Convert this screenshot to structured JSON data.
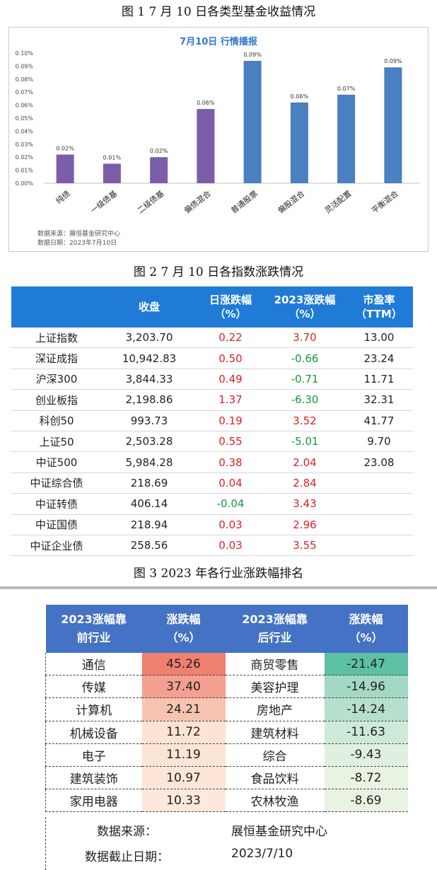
{
  "figure1": {
    "caption": "图 1   7 月 10 日各类型基金收益情况",
    "source_line": "数据来源：展恒基金研究中心",
    "date_line": "数据日期：2023年7月10日"
  },
  "chart_data": {
    "type": "bar",
    "title": "7月10日  行情播报",
    "categories": [
      "纯债",
      "一级债基",
      "二级债基",
      "偏债混合",
      "普通股票",
      "偏股混合",
      "灵活配置",
      "平衡混合"
    ],
    "values": [
      0.022,
      0.015,
      0.02,
      0.057,
      0.094,
      0.062,
      0.068,
      0.089
    ],
    "data_labels": [
      "0.02%",
      "0.01%",
      "0.02%",
      "0.06%",
      "0.09%",
      "0.06%",
      "0.07%",
      "0.09%"
    ],
    "bar_colors": [
      "#7b5ea7",
      "#7b5ea7",
      "#7b5ea7",
      "#7b5ea7",
      "#4a7fc0",
      "#4a7fc0",
      "#4a7fc0",
      "#4a7fc0"
    ],
    "yticks": [
      "0.00%",
      "0.01%",
      "0.02%",
      "0.03%",
      "0.04%",
      "0.05%",
      "0.06%",
      "0.07%",
      "0.08%",
      "0.09%",
      "0.10%"
    ],
    "ylim": [
      0,
      0.1
    ],
    "xlabel": "",
    "ylabel": "",
    "grid": false,
    "title_color": "#2e75d0"
  },
  "figure2": {
    "caption": "图 2   7 月 10 日各指数涨跌情况",
    "headers": [
      {
        "l1": "",
        "l2": ""
      },
      {
        "l1": "收盘",
        "l2": ""
      },
      {
        "l1": "日涨跌幅",
        "l2": "（%）"
      },
      {
        "l1": "2023涨跌幅",
        "l2": "（%）"
      },
      {
        "l1": "市盈率",
        "l2": "（TTM）"
      }
    ],
    "rows": [
      {
        "name": "上证指数",
        "close": "3,203.70",
        "day": "0.22",
        "year": "3.70",
        "pe": "13.00"
      },
      {
        "name": "深证成指",
        "close": "10,942.83",
        "day": "0.50",
        "year": "-0.66",
        "pe": "23.24"
      },
      {
        "name": "沪深300",
        "close": "3,844.33",
        "day": "0.49",
        "year": "-0.71",
        "pe": "11.71"
      },
      {
        "name": "创业板指",
        "close": "2,198.86",
        "day": "1.37",
        "year": "-6.30",
        "pe": "32.31"
      },
      {
        "name": "科创50",
        "close": "993.73",
        "day": "0.19",
        "year": "3.52",
        "pe": "41.77"
      },
      {
        "name": "上证50",
        "close": "2,503.28",
        "day": "0.55",
        "year": "-5.01",
        "pe": "9.70"
      },
      {
        "name": "中证500",
        "close": "5,984.28",
        "day": "0.38",
        "year": "2.04",
        "pe": "23.08"
      },
      {
        "name": "中证综合债",
        "close": "218.69",
        "day": "0.04",
        "year": "2.84",
        "pe": ""
      },
      {
        "name": "中证转债",
        "close": "406.14",
        "day": "-0.04",
        "year": "3.43",
        "pe": ""
      },
      {
        "name": "中证国债",
        "close": "218.94",
        "day": "0.03",
        "year": "2.96",
        "pe": ""
      },
      {
        "name": "中证企业债",
        "close": "258.56",
        "day": "0.03",
        "year": "3.55",
        "pe": ""
      }
    ],
    "positive_color": "#e0201f",
    "negative_color": "#169a3a"
  },
  "figure3": {
    "caption": "图 3   2023 年各行业涨跌幅排名",
    "headers": [
      {
        "l1": "2023涨幅靠",
        "l2": "前行业"
      },
      {
        "l1": "涨跌幅",
        "l2": "（%）"
      },
      {
        "l1": "2023涨幅靠",
        "l2": "后行业"
      },
      {
        "l1": "涨跌幅",
        "l2": "（%）"
      }
    ],
    "rows": [
      {
        "top": "通信",
        "top_v": "45.26",
        "top_bg": "#f08070",
        "bot": "商贸零售",
        "bot_v": "-21.47",
        "bot_bg": "#5cc0a5"
      },
      {
        "top": "传媒",
        "top_v": "37.40",
        "top_bg": "#f4a090",
        "bot": "美容护理",
        "bot_v": "-14.96",
        "bot_bg": "#a3d9c4"
      },
      {
        "top": "计算机",
        "top_v": "24.21",
        "top_bg": "#f8c4b2",
        "bot": "房地产",
        "bot_v": "-14.24",
        "bot_bg": "#b6e0cd"
      },
      {
        "top": "机械设备",
        "top_v": "11.72",
        "top_bg": "#fce3d4",
        "bot": "建筑材料",
        "bot_v": "-11.63",
        "bot_bg": "#cde9d8"
      },
      {
        "top": "电子",
        "top_v": "11.19",
        "top_bg": "#fde5d6",
        "bot": "综合",
        "bot_v": "-9.43",
        "bot_bg": "#e0f0e0"
      },
      {
        "top": "建筑装饰",
        "top_v": "10.97",
        "top_bg": "#fde6d8",
        "bot": "食品饮料",
        "bot_v": "-8.72",
        "bot_bg": "#e8f3e2"
      },
      {
        "top": "家用电器",
        "top_v": "10.33",
        "top_bg": "#fde8db",
        "bot": "农林牧渔",
        "bot_v": "-8.69",
        "bot_bg": "#e9f3e3"
      }
    ],
    "source_label": "数据来源：",
    "source_value": "展恒基金研究中心",
    "date_label": "数据截止日期：",
    "date_value": "2023/7/10",
    "header_color": "#4472c4"
  }
}
